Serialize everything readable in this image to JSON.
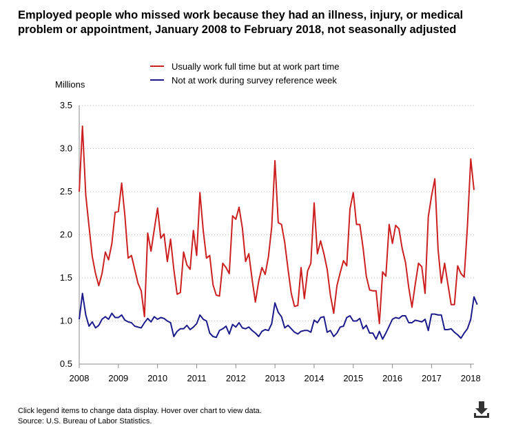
{
  "chart_data": {
    "type": "line",
    "title": "Employed people who missed work because they had an illness, injury, or medical problem or appointment, January 2008 to February 2018, not seasonally adjusted",
    "ylabel": "Millions",
    "xlabel": "",
    "ylim": [
      0.5,
      3.5
    ],
    "yticks": [
      "3.5",
      "3.0",
      "2.5",
      "2.0",
      "1.5",
      "1.0",
      "0.5"
    ],
    "ytick_values": [
      3.5,
      3.0,
      2.5,
      2.0,
      1.5,
      1.0,
      0.5
    ],
    "xticks": [
      "2008",
      "2009",
      "2010",
      "2011",
      "2012",
      "2013",
      "2014",
      "2015",
      "2016",
      "2017",
      "2018"
    ],
    "xlim": [
      "2008-01",
      "2018-02"
    ],
    "x_start": "2008-01",
    "frequency": "monthly",
    "grid": "horizontal dotted",
    "legend_position": "top",
    "series": [
      {
        "name": "Usually work full time but at work part time",
        "color": "#cc1f1f",
        "values": [
          2.5,
          3.26,
          2.46,
          2.1,
          1.75,
          1.55,
          1.41,
          1.55,
          1.8,
          1.71,
          1.9,
          2.26,
          2.27,
          2.6,
          2.22,
          1.73,
          1.76,
          1.6,
          1.44,
          1.35,
          1.05,
          2.02,
          1.81,
          2.06,
          2.31,
          1.96,
          2.01,
          1.69,
          1.95,
          1.6,
          1.31,
          1.33,
          1.8,
          1.65,
          1.6,
          2.05,
          1.76,
          2.49,
          2.05,
          1.73,
          1.76,
          1.42,
          1.3,
          1.29,
          1.67,
          1.62,
          1.55,
          2.22,
          2.18,
          2.32,
          2.08,
          1.69,
          1.78,
          1.48,
          1.22,
          1.46,
          1.62,
          1.54,
          1.75,
          2.09,
          2.86,
          2.14,
          2.12,
          1.91,
          1.6,
          1.32,
          1.17,
          1.18,
          1.62,
          1.26,
          1.58,
          1.67,
          2.37,
          1.78,
          1.93,
          1.78,
          1.6,
          1.3,
          1.09,
          1.41,
          1.56,
          1.7,
          1.64,
          2.3,
          2.49,
          2.12,
          2.12,
          1.85,
          1.52,
          1.36,
          1.35,
          1.35,
          0.97,
          1.57,
          1.52,
          2.12,
          1.9,
          2.11,
          2.07,
          1.84,
          1.68,
          1.39,
          1.16,
          1.43,
          1.67,
          1.63,
          1.32,
          2.21,
          2.45,
          2.65,
          1.83,
          1.44,
          1.67,
          1.43,
          1.19,
          1.19,
          1.64,
          1.55,
          1.51,
          2.1,
          2.88,
          2.52
        ]
      },
      {
        "name": "Not at work during survey reference week",
        "color": "#1a1a8c",
        "values": [
          1.02,
          1.32,
          1.07,
          0.94,
          0.99,
          0.92,
          0.95,
          1.02,
          1.05,
          1.02,
          1.09,
          1.04,
          1.04,
          1.07,
          1.01,
          0.99,
          0.98,
          0.94,
          0.93,
          0.92,
          0.98,
          1.03,
          0.99,
          1.05,
          1.02,
          1.04,
          1.03,
          1.0,
          0.98,
          0.82,
          0.88,
          0.91,
          0.91,
          0.95,
          0.9,
          0.93,
          0.97,
          1.07,
          1.02,
          1.0,
          0.86,
          0.82,
          0.81,
          0.89,
          0.91,
          0.94,
          0.85,
          0.96,
          0.93,
          0.98,
          0.92,
          0.91,
          0.93,
          0.89,
          0.86,
          0.82,
          0.88,
          0.9,
          0.89,
          0.97,
          1.21,
          1.1,
          1.05,
          0.92,
          0.95,
          0.91,
          0.87,
          0.85,
          0.88,
          0.89,
          0.89,
          0.87,
          1.01,
          0.98,
          1.04,
          1.05,
          0.87,
          0.89,
          0.82,
          0.86,
          0.93,
          0.94,
          1.04,
          1.06,
          1.0,
          1.0,
          1.03,
          0.91,
          0.95,
          0.86,
          0.86,
          0.79,
          0.88,
          0.79,
          0.86,
          0.94,
          1.02,
          1.04,
          1.03,
          1.06,
          1.06,
          0.98,
          0.98,
          1.01,
          1.0,
          0.99,
          1.02,
          0.89,
          1.08,
          1.08,
          1.07,
          1.07,
          0.9,
          0.9,
          0.91,
          0.87,
          0.84,
          0.8,
          0.86,
          0.91,
          1.02,
          1.28,
          1.19
        ]
      }
    ]
  },
  "notes": {
    "instructions": "Click legend items to change data display. Hover over chart to view data.",
    "source": "Source: U.S. Bureau of Labor Statistics."
  },
  "icons": {
    "download": "download-icon"
  }
}
